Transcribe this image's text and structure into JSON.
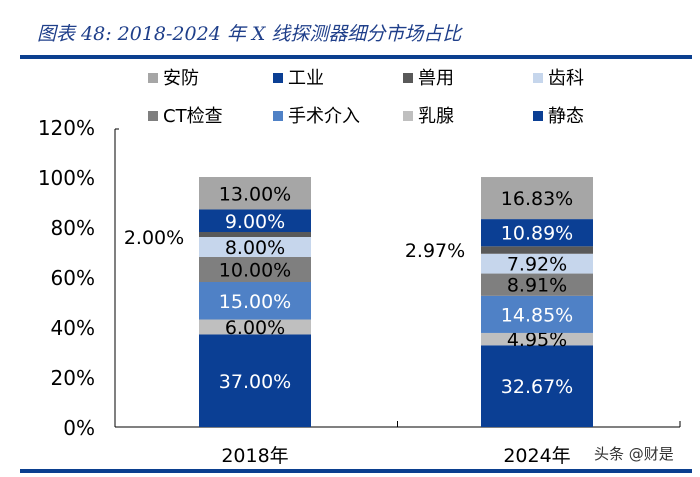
{
  "title": "图表 48:  2018-2024 年 X 线探测器细分市场占比",
  "watermark": "头条 @财是",
  "chart_data": {
    "type": "bar",
    "stacked": true,
    "categories": [
      "2018年",
      "2024年"
    ],
    "ylim": [
      0,
      120
    ],
    "yticks": [
      "0%",
      "20%",
      "40%",
      "60%",
      "80%",
      "100%",
      "120%"
    ],
    "ytick_values": [
      0,
      20,
      40,
      60,
      80,
      100,
      120
    ],
    "legend_position": "top",
    "grid": false,
    "series": [
      {
        "name": "静态",
        "values": [
          37.0,
          32.67
        ],
        "labels": [
          "37.00%",
          "32.67%"
        ],
        "color": "#0b3f94",
        "label_color": "#ffffff"
      },
      {
        "name": "乳腺",
        "values": [
          6.0,
          4.95
        ],
        "labels": [
          "6.00%",
          "4.95%"
        ],
        "color": "#bfbfbf",
        "label_color": "#000000"
      },
      {
        "name": "手术介入",
        "values": [
          15.0,
          14.85
        ],
        "labels": [
          "15.00%",
          "14.85%"
        ],
        "color": "#4f81c6",
        "label_color": "#ffffff"
      },
      {
        "name": "CT检查",
        "values": [
          10.0,
          8.91
        ],
        "labels": [
          "10.00%",
          "8.91%"
        ],
        "color": "#7f7f7f",
        "label_color": "#000000"
      },
      {
        "name": "齿科",
        "values": [
          8.0,
          7.92
        ],
        "labels": [
          "8.00%",
          "7.92%"
        ],
        "color": "#c6d6ec",
        "label_color": "#000000"
      },
      {
        "name": "兽用",
        "values": [
          2.0,
          2.97
        ],
        "labels": [
          "2.00%",
          "2.97%"
        ],
        "color": "#595959",
        "label_color": "#000000",
        "label_outside": true
      },
      {
        "name": "工业",
        "values": [
          9.0,
          10.89
        ],
        "labels": [
          "9.00%",
          "10.89%"
        ],
        "color": "#0b3f94",
        "label_color": "#ffffff"
      },
      {
        "name": "安防",
        "values": [
          13.0,
          16.83
        ],
        "labels": [
          "13.00%",
          "16.83%"
        ],
        "color": "#a6a6a6",
        "label_color": "#000000"
      }
    ],
    "legend_order": [
      "安防",
      "工业",
      "兽用",
      "齿科",
      "CT检查",
      "手术介入",
      "乳腺",
      "静态"
    ]
  }
}
